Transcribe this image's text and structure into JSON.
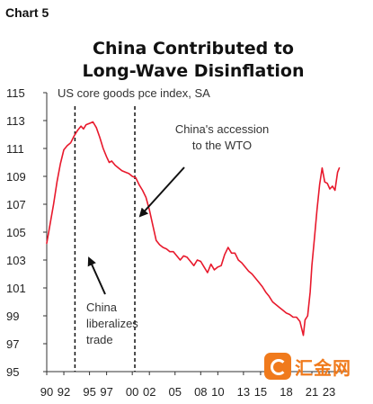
{
  "chart_label": "Chart 5",
  "watermark": {
    "text": "汇金网"
  },
  "colors": {
    "series": "#e8192c",
    "axis": "#333333",
    "annotation_line": "#111111",
    "watermark": "#f07a1c"
  },
  "chart_data": {
    "type": "line",
    "title_lines": [
      "China Contributed to",
      "Long-Wave Disinflation"
    ],
    "subtitle": "US core goods pce index, SA",
    "xlabel": "",
    "ylabel": "",
    "ylim": [
      95,
      115
    ],
    "xlim": [
      1990,
      2025.2
    ],
    "y_ticks": [
      95,
      97,
      99,
      101,
      103,
      105,
      107,
      109,
      111,
      113,
      115
    ],
    "x_ticks": [
      {
        "value": 1990,
        "label": "90"
      },
      {
        "value": 1992,
        "label": "92"
      },
      {
        "value": 1995,
        "label": "95"
      },
      {
        "value": 1997,
        "label": "97"
      },
      {
        "value": 2000,
        "label": "00"
      },
      {
        "value": 2002,
        "label": "02"
      },
      {
        "value": 2005,
        "label": "05"
      },
      {
        "value": 2008,
        "label": "08"
      },
      {
        "value": 2010,
        "label": "10"
      },
      {
        "value": 2013,
        "label": "13"
      },
      {
        "value": 2015,
        "label": "15"
      },
      {
        "value": 2018,
        "label": "18"
      },
      {
        "value": 2021,
        "label": "21"
      },
      {
        "value": 2023,
        "label": "23"
      }
    ],
    "grid": false,
    "series": [
      {
        "x": [
          1990.0,
          1990.4,
          1990.8,
          1991.2,
          1991.6,
          1992.0,
          1992.4,
          1992.8,
          1993.2,
          1993.6,
          1994.0,
          1994.3,
          1994.6,
          1995.0,
          1995.4,
          1995.8,
          1996.2,
          1996.6,
          1997.0,
          1997.3,
          1997.6,
          1998.0,
          1998.4,
          1998.8,
          1999.2,
          1999.6,
          2000.0,
          2000.4,
          2000.8,
          2001.2,
          2001.6,
          2002.0,
          2002.4,
          2002.8,
          2003.2,
          2003.6,
          2004.0,
          2004.4,
          2004.8,
          2005.2,
          2005.6,
          2006.0,
          2006.4,
          2006.8,
          2007.2,
          2007.6,
          2008.0,
          2008.4,
          2008.8,
          2009.2,
          2009.6,
          2010.0,
          2010.4,
          2010.8,
          2011.2,
          2011.6,
          2012.0,
          2012.4,
          2012.8,
          2013.2,
          2013.6,
          2014.0,
          2014.4,
          2014.8,
          2015.2,
          2015.6,
          2016.0,
          2016.4,
          2016.8,
          2017.2,
          2017.6,
          2018.0,
          2018.4,
          2018.8,
          2019.2,
          2019.6,
          2020.0,
          2020.2,
          2020.5,
          2020.8,
          2021.0,
          2021.3,
          2021.6,
          2021.9,
          2022.2,
          2022.5,
          2022.8,
          2023.1,
          2023.4,
          2023.7,
          2024.0,
          2024.2
        ],
        "values": [
          104.2,
          105.6,
          107.0,
          108.6,
          109.9,
          110.9,
          111.2,
          111.4,
          111.9,
          112.3,
          112.6,
          112.4,
          112.7,
          112.8,
          112.9,
          112.5,
          111.8,
          111.0,
          110.4,
          110.0,
          110.1,
          109.8,
          109.6,
          109.4,
          109.3,
          109.2,
          109.0,
          108.9,
          108.4,
          108.0,
          107.5,
          106.6,
          105.5,
          104.4,
          104.1,
          103.9,
          103.8,
          103.6,
          103.6,
          103.3,
          103.0,
          103.3,
          103.2,
          102.9,
          102.6,
          103.0,
          102.9,
          102.5,
          102.1,
          102.7,
          102.3,
          102.5,
          102.6,
          103.4,
          103.9,
          103.5,
          103.5,
          103.0,
          102.8,
          102.5,
          102.2,
          102.0,
          101.7,
          101.4,
          101.1,
          100.7,
          100.4,
          100.0,
          99.8,
          99.6,
          99.4,
          99.2,
          99.1,
          98.9,
          98.9,
          98.6,
          97.6,
          98.7,
          99.0,
          100.7,
          102.6,
          104.6,
          106.6,
          108.4,
          109.6,
          108.6,
          108.5,
          108.1,
          108.3,
          108.0,
          109.3,
          109.6
        ]
      }
    ],
    "annotations": [
      {
        "lines": [
          "China",
          "liberalizes",
          "trade"
        ],
        "event_x": 1993.3
      },
      {
        "lines": [
          "China's accession",
          "to the WTO"
        ],
        "event_x": 2000.3
      }
    ]
  }
}
